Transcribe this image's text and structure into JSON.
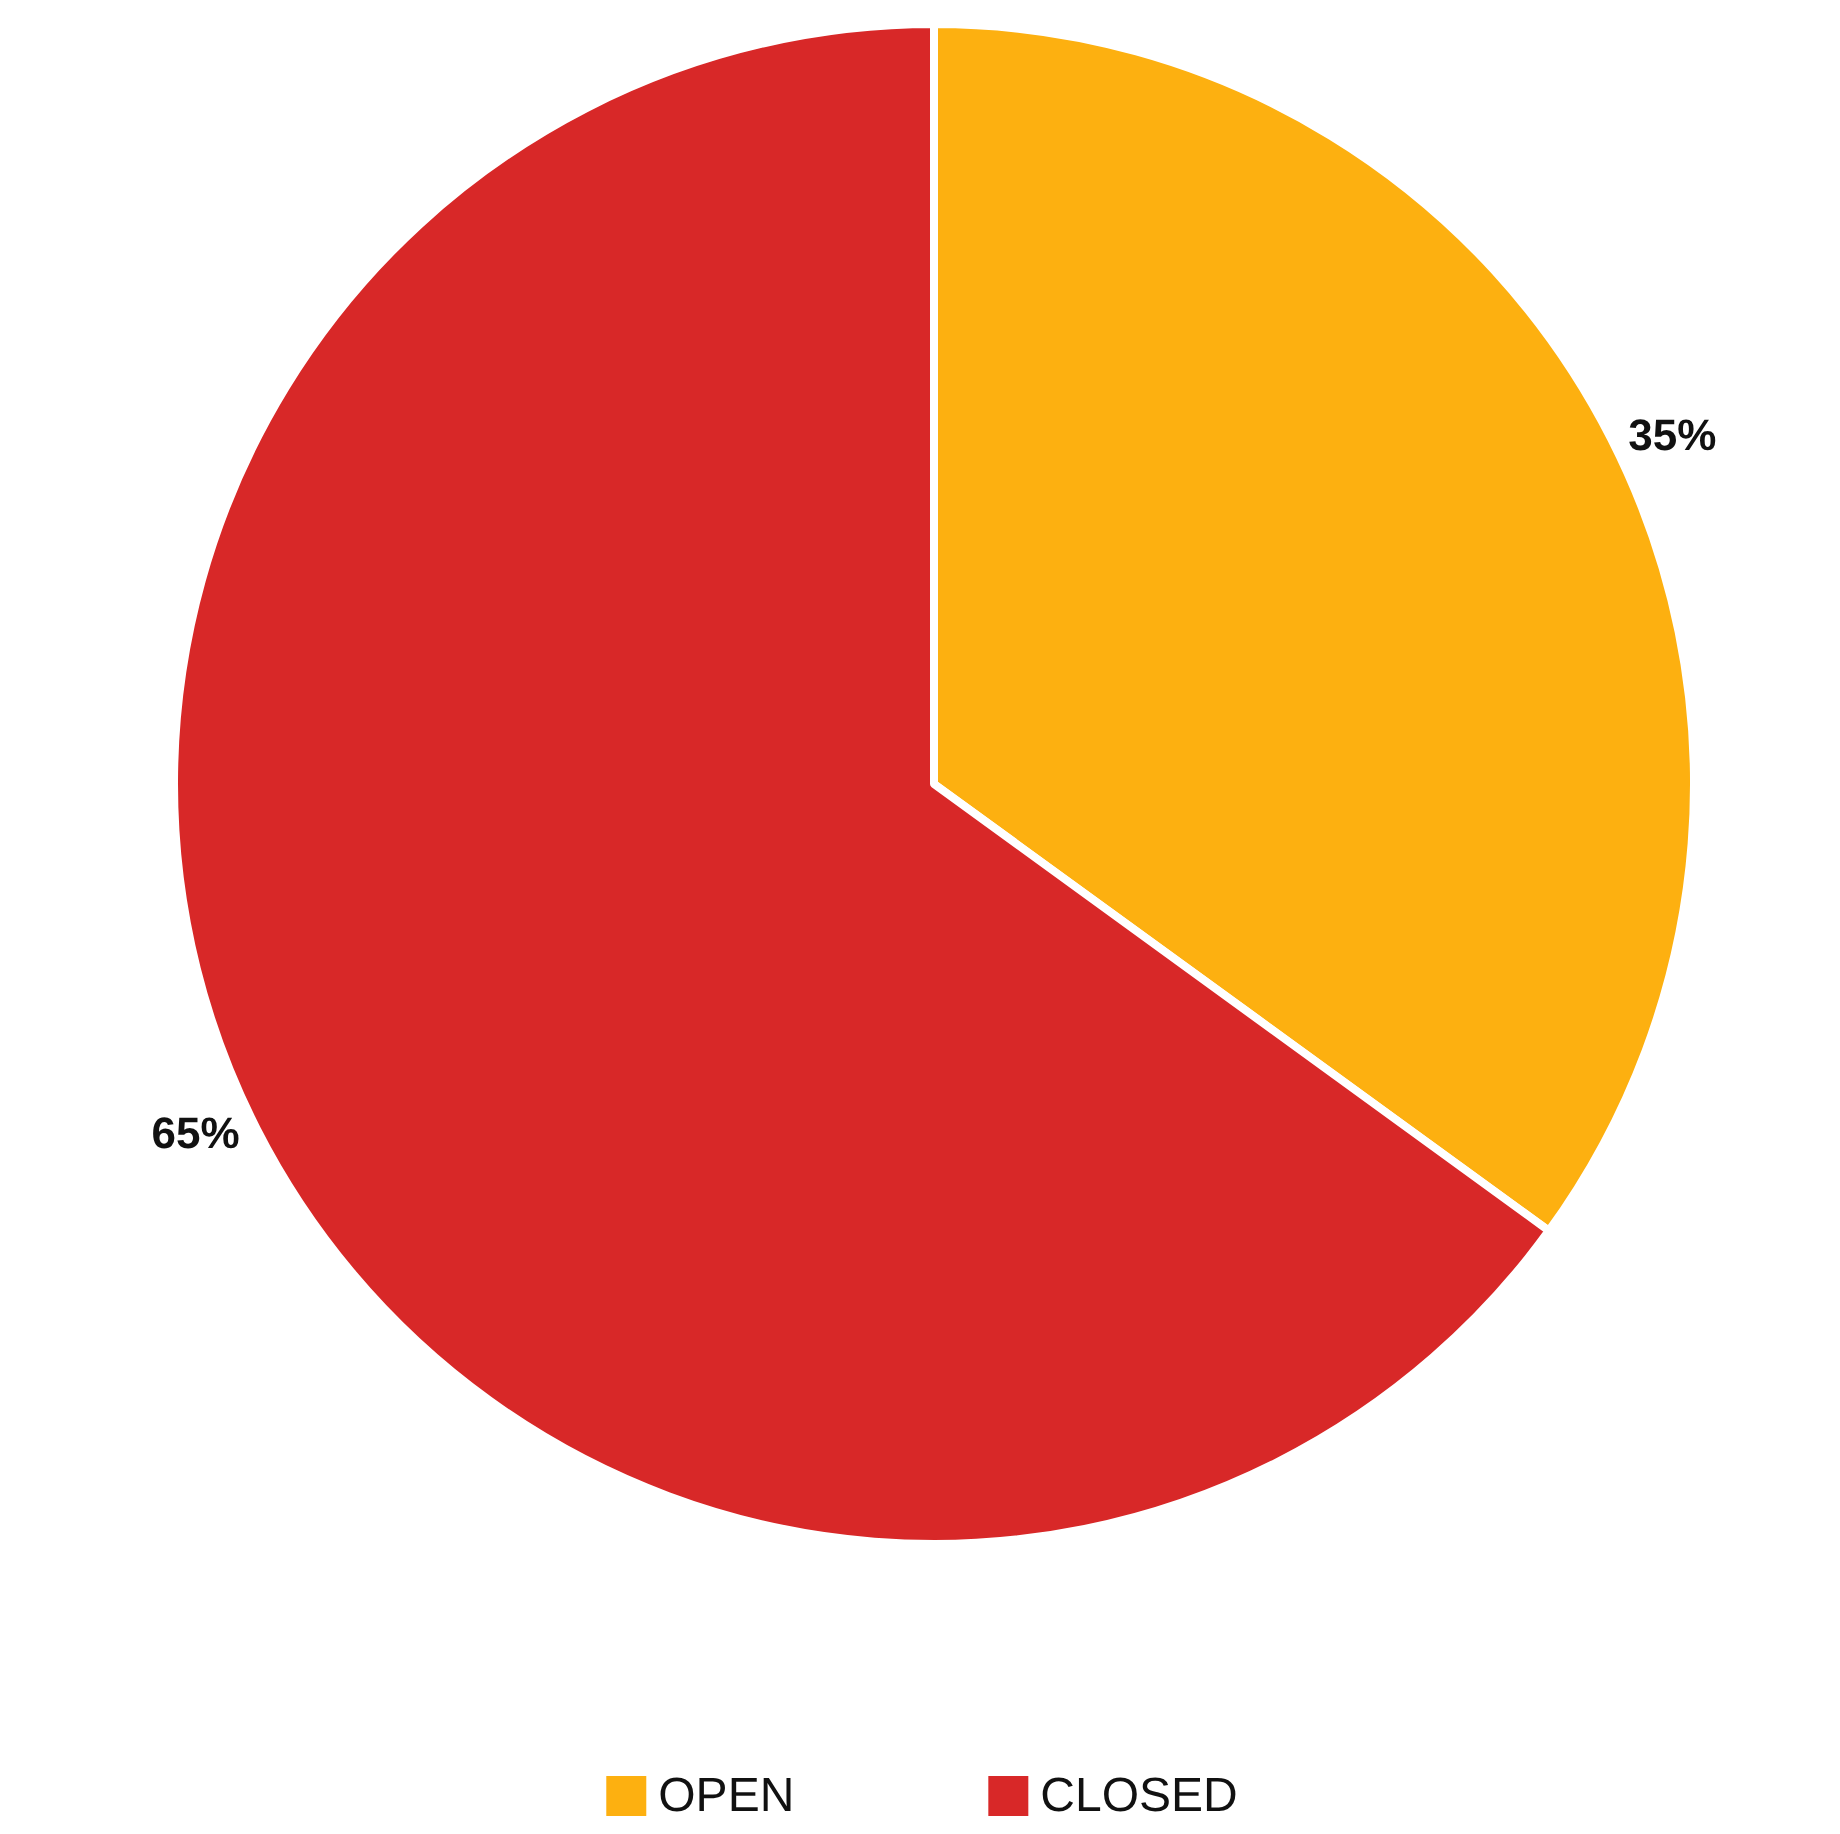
{
  "chart_data": {
    "type": "pie",
    "categories": [
      "OPEN",
      "CLOSED"
    ],
    "values": [
      35,
      65
    ],
    "colors": [
      "#fdb010",
      "#d82828"
    ],
    "value_labels": [
      "35%",
      "65%"
    ],
    "legend": "bottom"
  }
}
